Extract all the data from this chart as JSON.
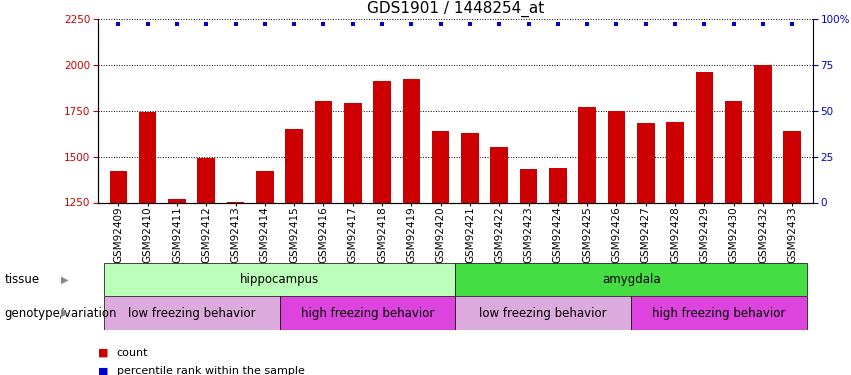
{
  "title": "GDS1901 / 1448254_at",
  "samples": [
    "GSM92409",
    "GSM92410",
    "GSM92411",
    "GSM92412",
    "GSM92413",
    "GSM92414",
    "GSM92415",
    "GSM92416",
    "GSM92417",
    "GSM92418",
    "GSM92419",
    "GSM92420",
    "GSM92421",
    "GSM92422",
    "GSM92423",
    "GSM92424",
    "GSM92425",
    "GSM92426",
    "GSM92427",
    "GSM92428",
    "GSM92429",
    "GSM92430",
    "GSM92432",
    "GSM92433"
  ],
  "counts": [
    1420,
    1740,
    1270,
    1490,
    1255,
    1420,
    1650,
    1800,
    1790,
    1910,
    1920,
    1640,
    1630,
    1550,
    1430,
    1440,
    1770,
    1750,
    1680,
    1690,
    1960,
    1800,
    2000,
    1640
  ],
  "bar_color": "#cc0000",
  "dot_color": "#0000cc",
  "ylim_left": [
    1250,
    2250
  ],
  "yticks_left": [
    1250,
    1500,
    1750,
    2000,
    2250
  ],
  "ylim_right": [
    0,
    100
  ],
  "yticks_right": [
    0,
    25,
    50,
    75,
    100
  ],
  "tissue_groups": [
    {
      "label": "hippocampus",
      "start": 0,
      "end": 11,
      "color": "#bbffbb"
    },
    {
      "label": "amygdala",
      "start": 12,
      "end": 23,
      "color": "#44dd44"
    }
  ],
  "genotype_groups": [
    {
      "label": "low freezing behavior",
      "start": 0,
      "end": 5,
      "color": "#ddaadd"
    },
    {
      "label": "high freezing behavior",
      "start": 6,
      "end": 11,
      "color": "#dd44dd"
    },
    {
      "label": "low freezing behavior",
      "start": 12,
      "end": 17,
      "color": "#ddaadd"
    },
    {
      "label": "high freezing behavior",
      "start": 18,
      "end": 23,
      "color": "#dd44dd"
    }
  ],
  "tissue_label": "tissue",
  "genotype_label": "genotype/variation",
  "legend_count_label": "count",
  "legend_pct_label": "percentile rank within the sample",
  "title_fontsize": 11,
  "tick_fontsize": 7.5,
  "label_fontsize": 8.5,
  "row_fontsize": 8.5
}
